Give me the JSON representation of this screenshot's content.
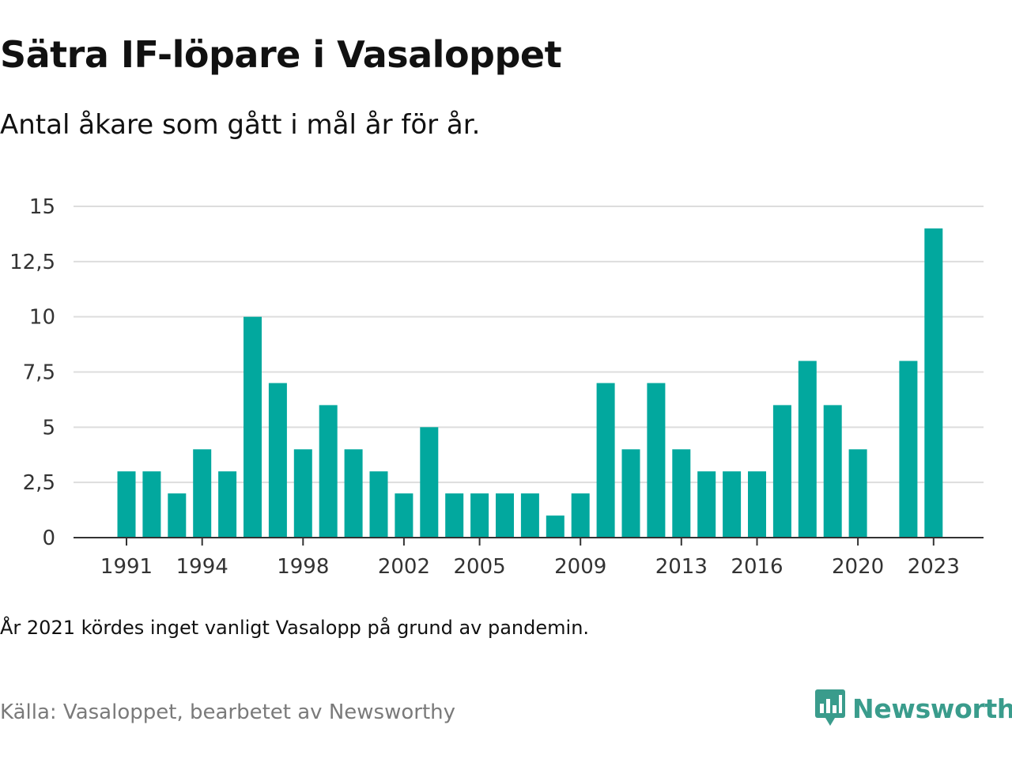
{
  "header": {
    "title": "Sätra IF-löpare i Vasaloppet",
    "subtitle": "Antal åkare som gått i mål år för år."
  },
  "footer": {
    "note": "År 2021 kördes inget vanligt Vasalopp på grund av pandemin.",
    "source": "Källa: Vasaloppet, bearbetet av Newsworthy",
    "logo_text": "Newsworthy"
  },
  "colors": {
    "bar": "#02a89e",
    "grid": "#dddddd",
    "axis": "#333333",
    "brand": "#3a9c8c"
  },
  "chart_data": {
    "type": "bar",
    "title": "Sätra IF-löpare i Vasaloppet",
    "subtitle": "Antal åkare som gått i mål år för år.",
    "xlabel": "",
    "ylabel": "",
    "ylim": [
      0,
      15
    ],
    "y_ticks": [
      0,
      2.5,
      5,
      7.5,
      10,
      12.5,
      15
    ],
    "y_tick_labels": [
      "0",
      "2,5",
      "5",
      "7,5",
      "10",
      "12,5",
      "15"
    ],
    "x_tick_labels": [
      "1991",
      "1994",
      "1998",
      "2002",
      "2005",
      "2009",
      "2013",
      "2016",
      "2020",
      "2023"
    ],
    "grid": true,
    "categories": [
      1991,
      1992,
      1993,
      1994,
      1995,
      1996,
      1997,
      1998,
      1999,
      2000,
      2001,
      2002,
      2003,
      2004,
      2005,
      2006,
      2007,
      2008,
      2009,
      2010,
      2011,
      2012,
      2013,
      2014,
      2015,
      2016,
      2017,
      2018,
      2019,
      2020,
      2021,
      2022,
      2023
    ],
    "values": [
      3,
      3,
      2,
      4,
      3,
      10,
      7,
      4,
      6,
      4,
      3,
      2,
      5,
      2,
      2,
      2,
      2,
      1,
      2,
      7,
      4,
      7,
      4,
      3,
      3,
      3,
      6,
      8,
      6,
      4,
      null,
      8,
      14
    ]
  }
}
